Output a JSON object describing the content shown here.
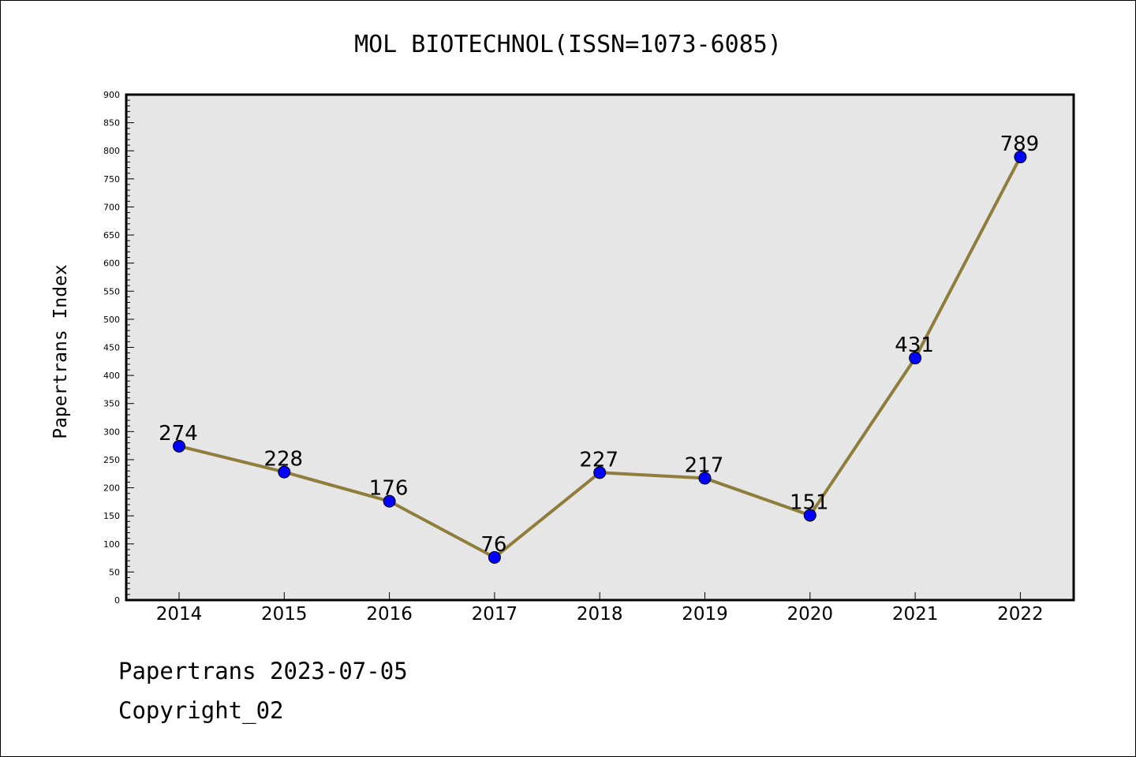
{
  "chart_data": {
    "type": "line",
    "title": "MOL BIOTECHNOL(ISSN=1073-6085)",
    "xlabel": "",
    "ylabel": "Papertrans Index",
    "categories": [
      "2014",
      "2015",
      "2016",
      "2017",
      "2018",
      "2019",
      "2020",
      "2021",
      "2022"
    ],
    "series": [
      {
        "values": [
          274,
          228,
          176,
          76,
          227,
          217,
          151,
          431,
          789
        ]
      }
    ],
    "ylim": [
      0,
      900
    ],
    "yticks": [
      0,
      50,
      100,
      150,
      200,
      250,
      300,
      350,
      400,
      450,
      500,
      550,
      600,
      650,
      700,
      750,
      800,
      850,
      900
    ],
    "colors": {
      "line": "#8f7d3c",
      "marker": "#0000ff",
      "plot_background": "#e6e6e6"
    },
    "grid": false,
    "data_labels": true
  },
  "footer": {
    "line1": "Papertrans 2023-07-05",
    "line2": "Copyright_02"
  }
}
